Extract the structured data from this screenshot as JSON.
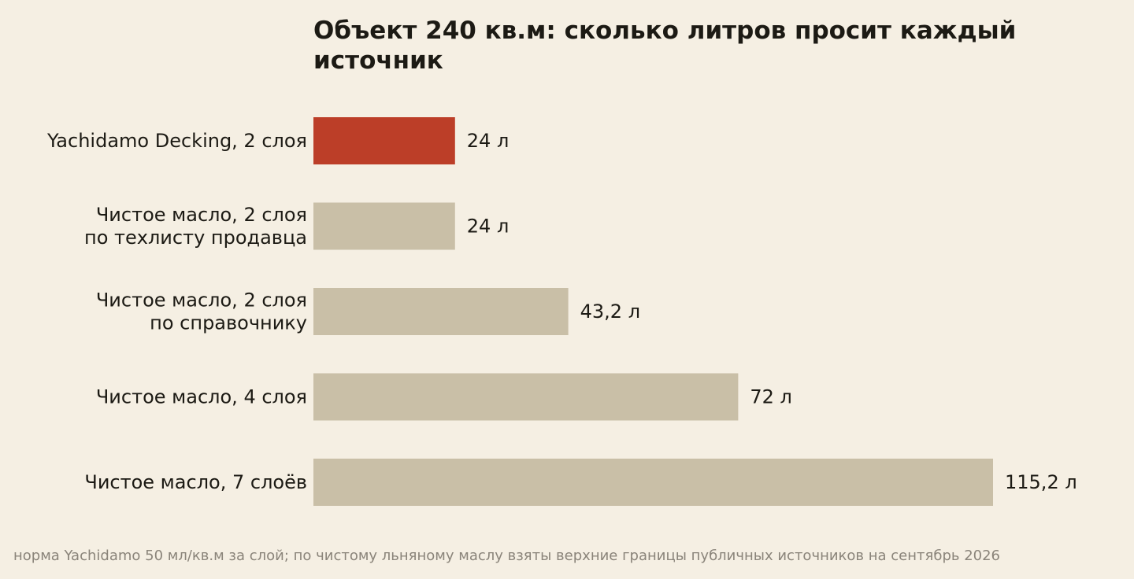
{
  "title": "Объект 240 кв.м: сколько литров просит каждый источник",
  "footnote": "норма Yachidamo 50 мл/кв.м за слой; по чистому льняному маслу взяты верхние границы публичных источников на сентябрь 2026",
  "colors": {
    "highlight": "#bc3e28",
    "bar": "#c9bfa7",
    "background": "#f5efe3",
    "text": "#1c1a14",
    "muted": "#8a847a"
  },
  "chart_data": {
    "type": "bar",
    "orientation": "horizontal",
    "categories": [
      [
        "Yachidamo Decking, 2 слоя"
      ],
      [
        "Чистое масло, 2 слоя",
        "по техлисту продавца"
      ],
      [
        "Чистое масло, 2 слоя",
        "по справочнику"
      ],
      [
        "Чистое масло, 4 слоя"
      ],
      [
        "Чистое масло, 7 слоёв"
      ]
    ],
    "values": [
      24,
      24,
      43.2,
      72,
      115.2
    ],
    "value_labels": [
      "24 л",
      "24 л",
      "43,2 л",
      "72 л",
      "115,2 л"
    ],
    "highlight_index": 0,
    "xlim": [
      0,
      115.2
    ],
    "grid": false,
    "x_axis_visible": false
  }
}
